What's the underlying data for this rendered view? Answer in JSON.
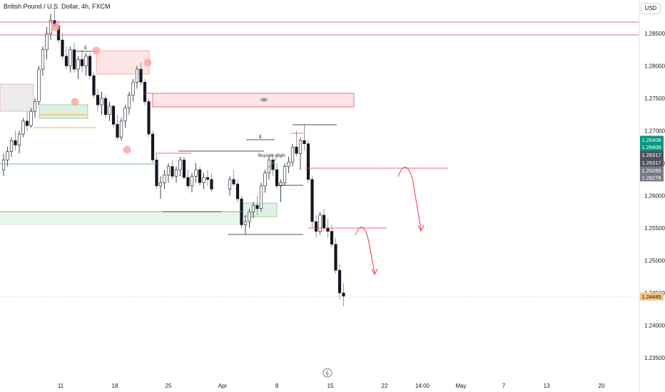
{
  "header": {
    "symbol_title": "British Pound / U.S. Dollar, 4h, FXCM",
    "currency_button": "USD"
  },
  "chart_data": {
    "type": "candlestick",
    "y_ticks": [
      "1.28500",
      "1.28000",
      "1.27500",
      "1.27000",
      "1.26500",
      "1.26000",
      "1.25500",
      "1.25000",
      "1.24500",
      "1.24000",
      "1.23500"
    ],
    "x_ticks": [
      "11",
      "18",
      "25",
      "Apr",
      "8",
      "15",
      "22",
      "14:00",
      "May",
      "7",
      "13",
      "20"
    ],
    "price_labels": [
      {
        "text": "1.26408",
        "color": "#089981"
      },
      {
        "text": "1.26408",
        "color": "#089981"
      },
      {
        "text": "1.26317",
        "color": "#50535e"
      },
      {
        "text": "1.26317",
        "color": "#50535e"
      },
      {
        "text": "1.26285",
        "color": "#787b86"
      },
      {
        "text": "1.26278",
        "color": "#787b86"
      },
      {
        "text": "1.24445",
        "color": "#f5c37a"
      }
    ],
    "annotations": {
      "ote_label": "£",
      "ote_label_2": "£",
      "buyside_label": "Buyside origin"
    },
    "candles": [
      [
        1.264,
        1.2665,
        1.263,
        1.2655
      ],
      [
        1.2655,
        1.2675,
        1.2645,
        1.2668
      ],
      [
        1.2668,
        1.269,
        1.266,
        1.2685
      ],
      [
        1.2685,
        1.27,
        1.267,
        1.2678
      ],
      [
        1.2678,
        1.27,
        1.2665,
        1.2695
      ],
      [
        1.2695,
        1.272,
        1.269,
        1.2715
      ],
      [
        1.2715,
        1.273,
        1.27,
        1.2708
      ],
      [
        1.2708,
        1.2735,
        1.2705,
        1.273
      ],
      [
        1.273,
        1.275,
        1.272,
        1.2745
      ],
      [
        1.2745,
        1.28,
        1.274,
        1.2795
      ],
      [
        1.2795,
        1.283,
        1.2785,
        1.2825
      ],
      [
        1.2825,
        1.286,
        1.281,
        1.285
      ],
      [
        1.285,
        1.288,
        1.284,
        1.287
      ],
      [
        1.287,
        1.289,
        1.2855,
        1.2862
      ],
      [
        1.2862,
        1.287,
        1.2835,
        1.284
      ],
      [
        1.284,
        1.285,
        1.281,
        1.2815
      ],
      [
        1.2815,
        1.283,
        1.2795,
        1.28
      ],
      [
        1.28,
        1.283,
        1.279,
        1.2825
      ],
      [
        1.2825,
        1.2835,
        1.279,
        1.2795
      ],
      [
        1.2795,
        1.2815,
        1.278,
        1.281
      ],
      [
        1.281,
        1.2825,
        1.279,
        1.28
      ],
      [
        1.28,
        1.282,
        1.2785,
        1.2815
      ],
      [
        1.2815,
        1.282,
        1.278,
        1.2785
      ],
      [
        1.2785,
        1.279,
        1.275,
        1.2755
      ],
      [
        1.2755,
        1.2765,
        1.273,
        1.274
      ],
      [
        1.274,
        1.276,
        1.2725,
        1.275
      ],
      [
        1.275,
        1.2755,
        1.272,
        1.2725
      ],
      [
        1.2725,
        1.2745,
        1.2715,
        1.2738
      ],
      [
        1.2738,
        1.274,
        1.2705,
        1.271
      ],
      [
        1.271,
        1.2725,
        1.2685,
        1.269
      ],
      [
        1.269,
        1.272,
        1.2685,
        1.2715
      ],
      [
        1.2715,
        1.274,
        1.2705,
        1.2735
      ],
      [
        1.2735,
        1.276,
        1.2725,
        1.2755
      ],
      [
        1.2755,
        1.278,
        1.2745,
        1.2775
      ],
      [
        1.2775,
        1.28,
        1.2765,
        1.2795
      ],
      [
        1.2795,
        1.2805,
        1.277,
        1.2775
      ],
      [
        1.2775,
        1.278,
        1.274,
        1.2745
      ],
      [
        1.2745,
        1.275,
        1.269,
        1.2695
      ],
      [
        1.2695,
        1.27,
        1.265,
        1.2655
      ],
      [
        1.2655,
        1.2665,
        1.261,
        1.2615
      ],
      [
        1.2615,
        1.263,
        1.2595,
        1.262
      ],
      [
        1.262,
        1.264,
        1.261,
        1.2632
      ],
      [
        1.2632,
        1.265,
        1.262,
        1.2645
      ],
      [
        1.2645,
        1.2655,
        1.2625,
        1.263
      ],
      [
        1.263,
        1.2645,
        1.262,
        1.264
      ],
      [
        1.264,
        1.266,
        1.263,
        1.2655
      ],
      [
        1.2655,
        1.266,
        1.2625,
        1.2628
      ],
      [
        1.2628,
        1.264,
        1.261,
        1.2615
      ],
      [
        1.2615,
        1.2635,
        1.2605,
        1.263
      ],
      [
        1.263,
        1.265,
        1.262,
        1.264
      ],
      [
        1.264,
        1.2645,
        1.2615,
        1.262
      ],
      [
        1.262,
        1.2635,
        1.261,
        1.2628
      ],
      [
        1.2628,
        1.264,
        1.2615,
        1.2625
      ],
      [
        1.2625,
        1.2635,
        1.2605,
        1.261
      ],
      [
        1.261,
        1.263,
        1.26,
        1.2625
      ],
      [
        1.2625,
        1.264,
        1.2615,
        1.2618
      ],
      [
        1.2618,
        1.2625,
        1.259,
        1.2595
      ],
      [
        1.2595,
        1.26,
        1.255,
        1.2555
      ],
      [
        1.2555,
        1.257,
        1.254,
        1.256
      ],
      [
        1.256,
        1.258,
        1.255,
        1.2575
      ],
      [
        1.2575,
        1.259,
        1.2565,
        1.2585
      ],
      [
        1.2585,
        1.26,
        1.257,
        1.258
      ],
      [
        1.258,
        1.262,
        1.2575,
        1.2615
      ],
      [
        1.2615,
        1.264,
        1.2605,
        1.2635
      ],
      [
        1.2635,
        1.266,
        1.2625,
        1.2655
      ],
      [
        1.2655,
        1.2665,
        1.263,
        1.264
      ],
      [
        1.264,
        1.265,
        1.261,
        1.2615
      ],
      [
        1.2615,
        1.2625,
        1.259,
        1.262
      ],
      [
        1.262,
        1.265,
        1.2615,
        1.2645
      ],
      [
        1.2645,
        1.266,
        1.2635,
        1.2652
      ],
      [
        1.2652,
        1.268,
        1.2645,
        1.2675
      ],
      [
        1.2675,
        1.27,
        1.266,
        1.2665
      ],
      [
        1.2665,
        1.269,
        1.264,
        1.2685
      ],
      [
        1.2685,
        1.271,
        1.267,
        1.268
      ],
      [
        1.268,
        1.2685,
        1.262,
        1.2625
      ],
      [
        1.2625,
        1.263,
        1.255,
        1.256
      ],
      [
        1.256,
        1.257,
        1.2535,
        1.2545
      ],
      [
        1.2545,
        1.2575,
        1.254,
        1.257
      ],
      [
        1.257,
        1.258,
        1.2545,
        1.255
      ],
      [
        1.255,
        1.2565,
        1.2535,
        1.2545
      ],
      [
        1.2545,
        1.2555,
        1.252,
        1.2525
      ],
      [
        1.2525,
        1.2535,
        1.248,
        1.2485
      ],
      [
        1.2485,
        1.2495,
        1.244,
        1.245
      ],
      [
        1.245,
        1.2465,
        1.243,
        1.2445
      ]
    ]
  }
}
